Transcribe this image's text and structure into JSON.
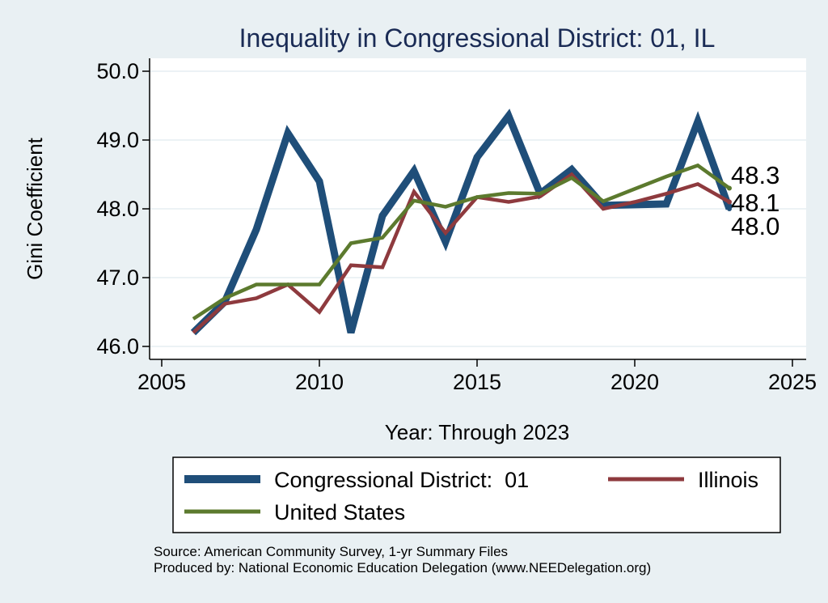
{
  "chart_data": {
    "type": "line",
    "title": "Inequality in Congressional District:  01, IL",
    "xlabel": "Year: Through 2023",
    "ylabel": "Gini Coefficient",
    "xlim": [
      2005,
      2025
    ],
    "ylim": [
      46.0,
      50.0
    ],
    "x_ticks": [
      "2005",
      "2010",
      "2015",
      "2020",
      "2025"
    ],
    "y_ticks": [
      "46.0",
      "47.0",
      "48.0",
      "49.0",
      "50.0"
    ],
    "grid": true,
    "x": [
      2006,
      2007,
      2008,
      2009,
      2010,
      2011,
      2012,
      2013,
      2014,
      2015,
      2016,
      2017,
      2018,
      2019,
      2020,
      2021,
      2022,
      2023
    ],
    "series": [
      {
        "name": "Congressional District:  01",
        "color": "#1f4e79",
        "values": [
          46.2,
          46.65,
          47.7,
          49.1,
          48.4,
          46.2,
          47.9,
          48.55,
          47.52,
          48.75,
          49.35,
          48.22,
          48.57,
          48.05,
          48.06,
          48.07,
          49.27,
          48.0
        ],
        "end_label": "48.0"
      },
      {
        "name": "Illinois",
        "color": "#8e3a3e",
        "values": [
          46.2,
          46.62,
          46.7,
          46.9,
          46.5,
          47.18,
          47.15,
          48.25,
          47.65,
          48.17,
          48.1,
          48.18,
          48.5,
          48.0,
          48.1,
          48.22,
          48.36,
          48.1
        ],
        "end_label": "48.1"
      },
      {
        "name": "United States",
        "color": "#5c7a2e",
        "values": [
          46.4,
          46.7,
          46.9,
          46.9,
          46.9,
          47.5,
          47.58,
          48.12,
          48.03,
          48.17,
          48.23,
          48.22,
          48.45,
          48.11,
          48.29,
          48.47,
          48.63,
          48.3
        ],
        "end_label": "48.3"
      }
    ],
    "legend": {
      "placement": "bottom",
      "entries": [
        "Congressional District:  01",
        "Illinois",
        "United States"
      ]
    }
  },
  "source": {
    "line1": "Source: American Community Survey, 1-yr Summary Files",
    "line2": "Produced by: National Economic Education Delegation (www.NEEDelegation.org)"
  }
}
